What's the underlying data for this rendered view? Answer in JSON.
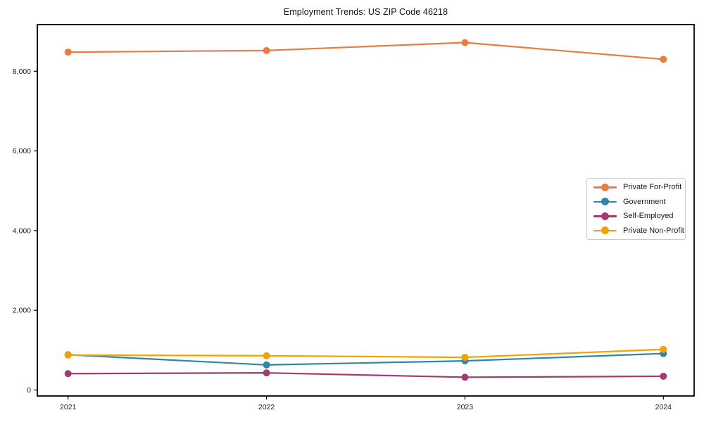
{
  "title": "Employment Trends: US ZIP Code 46218",
  "chart_data": {
    "type": "line",
    "title": "Employment Trends: US ZIP Code 46218",
    "x": [
      2021,
      2022,
      2023,
      2024
    ],
    "x_tick_labels": [
      "2021",
      "2022",
      "2023",
      "2024"
    ],
    "y_tick_values": [
      0,
      2000,
      4000,
      6000,
      8000
    ],
    "y_tick_labels": [
      "0",
      "2,000",
      "4,000",
      "6,000",
      "8,000"
    ],
    "ylim": [
      -150,
      9170
    ],
    "grid": false,
    "legend_position": "center-right",
    "marker": "circle",
    "series": [
      {
        "name": "Private For-Profit",
        "color": "#E87D3E",
        "values": [
          8480,
          8520,
          8720,
          8300
        ]
      },
      {
        "name": "Government",
        "color": "#2E86AB",
        "values": [
          885,
          630,
          730,
          915
        ]
      },
      {
        "name": "Self-Employed",
        "color": "#A23B72",
        "values": [
          410,
          430,
          320,
          345
        ]
      },
      {
        "name": "Private Non-Profit",
        "color": "#F1A104",
        "values": [
          875,
          860,
          820,
          1020
        ]
      }
    ]
  }
}
